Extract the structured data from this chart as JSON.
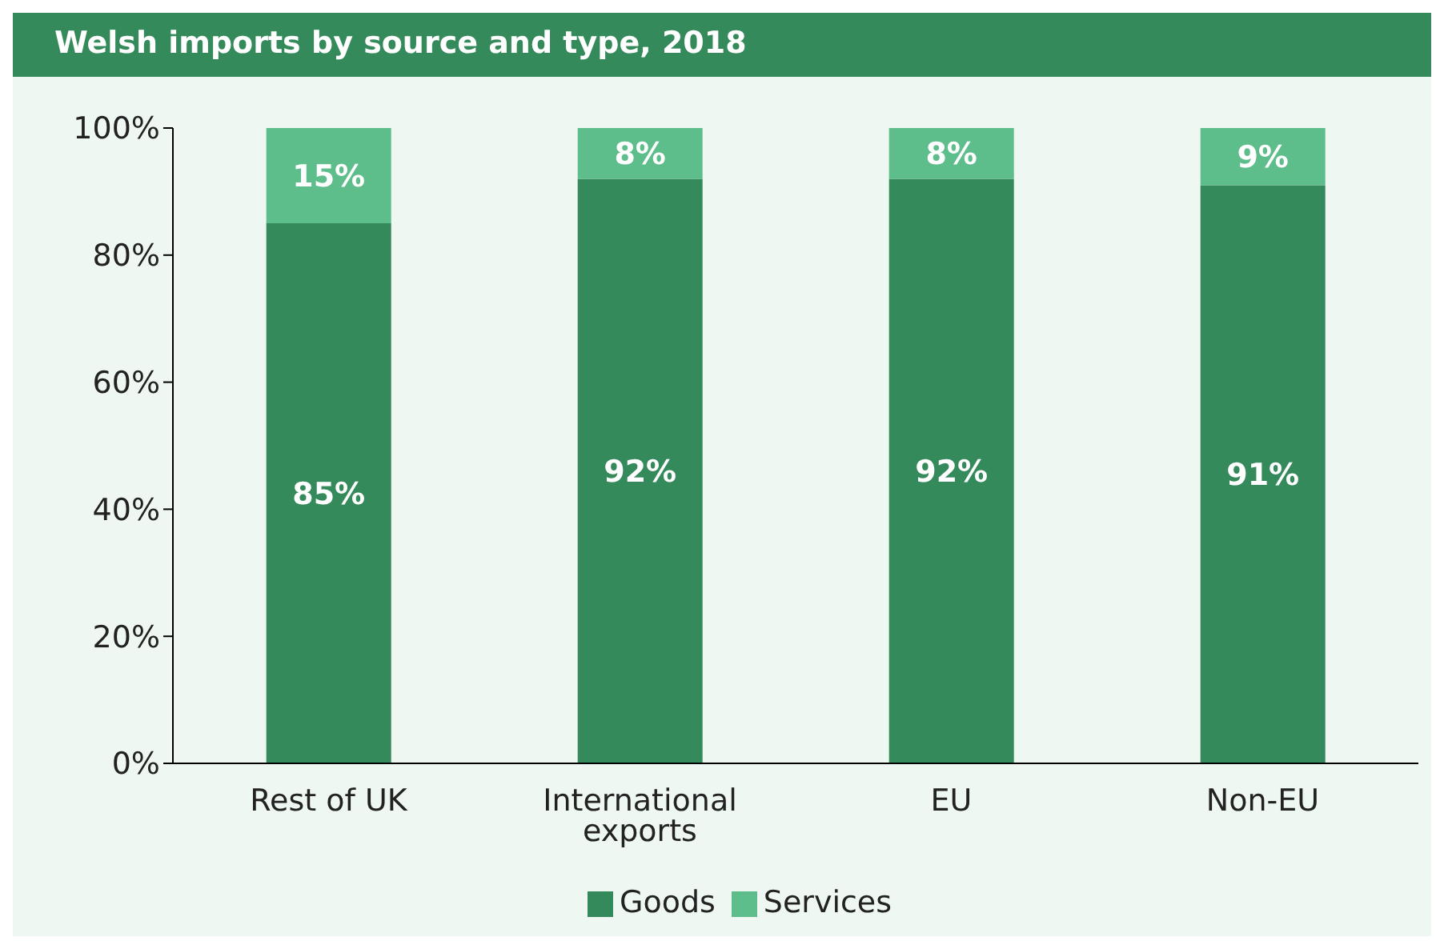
{
  "chart_data": {
    "type": "bar",
    "title": "Welsh imports by source and type, 2018",
    "categories": [
      "Rest of UK",
      "International exports",
      "EU",
      "Non-EU"
    ],
    "stacked": true,
    "series": [
      {
        "name": "Goods",
        "color": "#358a5b",
        "values": [
          85,
          92,
          92,
          91
        ],
        "value_labels": [
          "85%",
          "92%",
          "92%",
          "91%"
        ]
      },
      {
        "name": "Services",
        "color": "#5dbd8b",
        "values": [
          15,
          8,
          8,
          9
        ],
        "value_labels": [
          "15%",
          "8%",
          "8%",
          "9%"
        ]
      }
    ],
    "ylim": [
      0,
      100
    ],
    "yticks": [
      {
        "value": 0,
        "label": "0%"
      },
      {
        "value": 20,
        "label": "20%"
      },
      {
        "value": 40,
        "label": "40%"
      },
      {
        "value": 60,
        "label": "60%"
      },
      {
        "value": 80,
        "label": "80%"
      },
      {
        "value": 100,
        "label": "100%"
      }
    ],
    "grid": false,
    "legend": "bottom"
  }
}
